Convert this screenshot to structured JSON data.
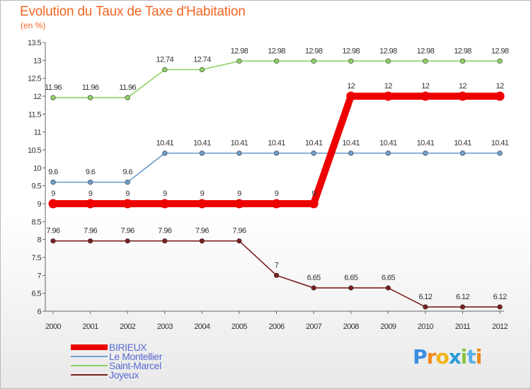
{
  "title": "Evolution du Taux de Taxe d'Habitation",
  "unit": "(en %)",
  "logo": {
    "text": "Proxiti",
    "letters": [
      "P",
      "r",
      "o",
      "x",
      "i",
      "t",
      "i"
    ],
    "colors": [
      "#3a8de0",
      "#f08a1e",
      "#f2b418",
      "#2d9bd8",
      "#8bc53f",
      "#5ab0e8",
      "#f08a1e"
    ]
  },
  "chart_data": {
    "type": "line",
    "title": "Evolution du Taux de Taxe d'Habitation",
    "ylabel": "(en %)",
    "xlabel": "",
    "x": [
      "2000",
      "2001",
      "2002",
      "2003",
      "2004",
      "2005",
      "2006",
      "2007",
      "2008",
      "2009",
      "2010",
      "2011",
      "2012"
    ],
    "ylim": [
      6,
      13.5
    ],
    "yticks": [
      "6",
      "6.5",
      "7",
      "7.5",
      "8",
      "8.5",
      "9",
      "9.5",
      "10",
      "10.5",
      "11",
      "11.5",
      "12",
      "12.5",
      "13",
      "13.5"
    ],
    "grid": false,
    "legend": "bottom-left",
    "series": [
      {
        "name": "BIRIEUX",
        "color": "#ee0000",
        "width": 10,
        "values": [
          9,
          9,
          9,
          9,
          9,
          9,
          9,
          9,
          12,
          12,
          12,
          12,
          12
        ],
        "labels": [
          "9",
          "9",
          "9",
          "9",
          "9",
          "9",
          "9",
          "9",
          "12",
          "12",
          "12",
          "12",
          "12"
        ]
      },
      {
        "name": "Le Montellier",
        "color": "#6d9fcf",
        "width": 1.6,
        "values": [
          9.6,
          9.6,
          9.6,
          10.41,
          10.41,
          10.41,
          10.41,
          10.41,
          10.41,
          10.41,
          10.41,
          10.41,
          10.41
        ],
        "labels": [
          "9.6",
          "9.6",
          "9.6",
          "10.41",
          "10.41",
          "10.41",
          "10.41",
          "10.41",
          "10.41",
          "10.41",
          "10.41",
          "10.41",
          "10.41"
        ]
      },
      {
        "name": "Saint-Marcel",
        "color": "#8ed164",
        "width": 1.6,
        "values": [
          11.96,
          11.96,
          11.96,
          12.74,
          12.74,
          12.98,
          12.98,
          12.98,
          12.98,
          12.98,
          12.98,
          12.98,
          12.98
        ],
        "labels": [
          "11.96",
          "11.96",
          "11.96",
          "12.74",
          "12.74",
          "12.98",
          "12.98",
          "12.98",
          "12.98",
          "12.98",
          "12.98",
          "12.98",
          "12.98"
        ]
      },
      {
        "name": "Joyeux",
        "color": "#7a1f1f",
        "width": 1.6,
        "values": [
          7.96,
          7.96,
          7.96,
          7.96,
          7.96,
          7.96,
          7,
          6.65,
          6.65,
          6.65,
          6.12,
          6.12,
          6.12
        ],
        "labels": [
          "7.96",
          "7.96",
          "7.96",
          "7.96",
          "7.96",
          "7.96",
          "7",
          "6.65",
          "6.65",
          "6.65",
          "6.12",
          "6.12",
          "6.12"
        ]
      }
    ]
  }
}
